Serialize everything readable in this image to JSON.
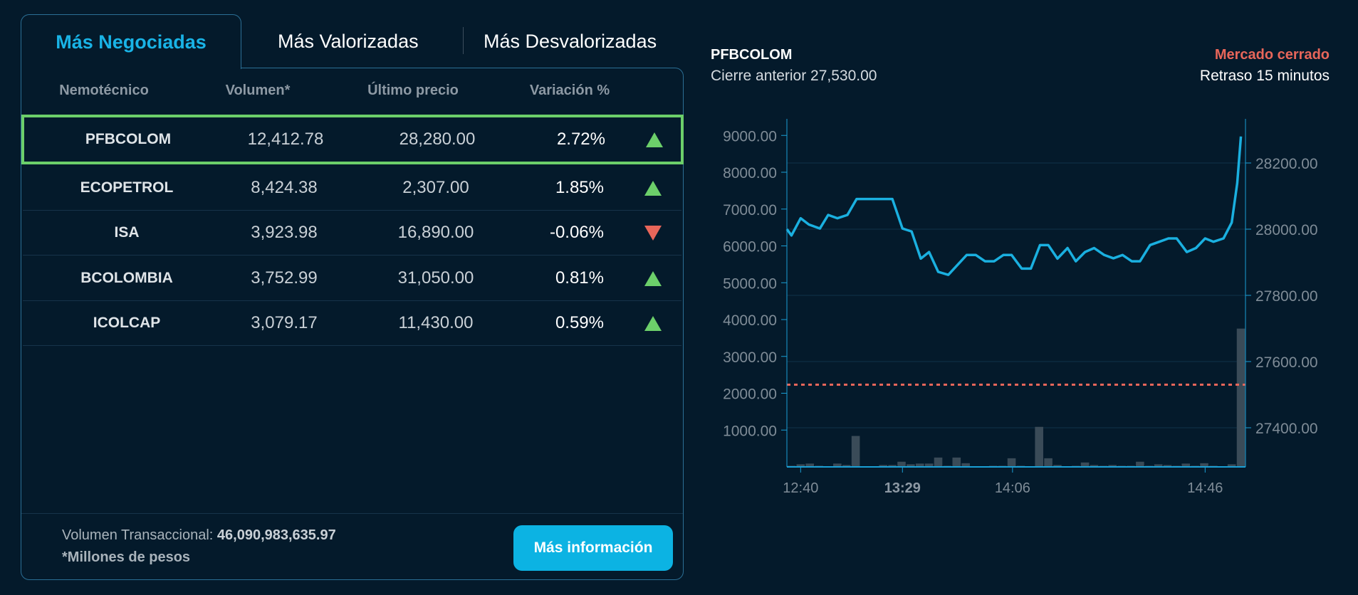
{
  "tabs": [
    {
      "label": "Más Negociadas",
      "active": true
    },
    {
      "label": "Más Valorizadas"
    },
    {
      "label": "Más Desvalorizadas"
    }
  ],
  "table": {
    "headers": [
      "Nemotécnico",
      "Volumen*",
      "Último precio",
      "Variación %"
    ],
    "rows": [
      {
        "symbol": "PFBCOLOM",
        "volume": "12,412.78",
        "price": "28,280.00",
        "change": "2.72%",
        "direction": "up",
        "selected": true
      },
      {
        "symbol": "ECOPETROL",
        "volume": "8,424.38",
        "price": "2,307.00",
        "change": "1.85%",
        "direction": "up"
      },
      {
        "symbol": "ISA",
        "volume": "3,923.98",
        "price": "16,890.00",
        "change": "-0.06%",
        "direction": "down"
      },
      {
        "symbol": "BCOLOMBIA",
        "volume": "3,752.99",
        "price": "31,050.00",
        "change": "0.81%",
        "direction": "up"
      },
      {
        "symbol": "ICOLCAP",
        "volume": "3,079.17",
        "price": "11,430.00",
        "change": "0.59%",
        "direction": "up"
      }
    ]
  },
  "footer": {
    "volume_label": "Volumen Transaccional: ",
    "volume_value": "46,090,983,635.97",
    "note": "*Millones de pesos",
    "button": "Más información"
  },
  "colors": {
    "accent": "#19b3e6",
    "up": "#6ccf6a",
    "down": "#e8665a",
    "line": "#1ab0e0",
    "bars": "#3a4b58",
    "reference": "#e8665a"
  },
  "chart_header": {
    "symbol": "PFBCOLOM",
    "prev_close": "Cierre anterior 27,530.00",
    "status": "Mercado cerrado",
    "delay": "Retraso 15 minutos"
  },
  "chart_data": {
    "type": "line",
    "x_ticks": [
      {
        "label": "12:40",
        "x": 1.5
      },
      {
        "label": "13:29",
        "x": 12.6,
        "bold": true
      },
      {
        "label": "14:06",
        "x": 24.6
      },
      {
        "label": "14:46",
        "x": 45.6
      }
    ],
    "xlim": [
      0,
      50
    ],
    "left_axis": {
      "ticks": [
        "1000.00",
        "2000.00",
        "3000.00",
        "4000.00",
        "5000.00",
        "6000.00",
        "7000.00",
        "8000.00",
        "9000.00"
      ],
      "values": [
        1000,
        2000,
        3000,
        4000,
        5000,
        6000,
        7000,
        8000,
        9000
      ]
    },
    "right_axis": {
      "ticks": [
        "27400.00",
        "27600.00",
        "27800.00",
        "28000.00",
        "28200.00"
      ],
      "values": [
        27400,
        27600,
        27800,
        28000,
        28200
      ]
    },
    "reference_line": 27530,
    "price": [
      [
        0,
        28000
      ],
      [
        0.5,
        27981
      ],
      [
        1.5,
        28033
      ],
      [
        2.4,
        28014
      ],
      [
        3.6,
        28002
      ],
      [
        4.5,
        28043
      ],
      [
        5.5,
        28033
      ],
      [
        6.6,
        28043
      ],
      [
        7.6,
        28091
      ],
      [
        11.5,
        28091
      ],
      [
        12.6,
        28002
      ],
      [
        13.6,
        27993
      ],
      [
        14.6,
        27911
      ],
      [
        15.5,
        27931
      ],
      [
        16.5,
        27871
      ],
      [
        17.6,
        27862
      ],
      [
        19.6,
        27922
      ],
      [
        20.6,
        27922
      ],
      [
        21.6,
        27903
      ],
      [
        22.6,
        27903
      ],
      [
        23.6,
        27922
      ],
      [
        24.5,
        27922
      ],
      [
        25.6,
        27881
      ],
      [
        26.6,
        27881
      ],
      [
        27.6,
        27952
      ],
      [
        28.5,
        27952
      ],
      [
        29.5,
        27911
      ],
      [
        30.6,
        27943
      ],
      [
        31.5,
        27903
      ],
      [
        32.5,
        27931
      ],
      [
        33.5,
        27943
      ],
      [
        34.6,
        27922
      ],
      [
        35.6,
        27912
      ],
      [
        36.6,
        27922
      ],
      [
        37.6,
        27903
      ],
      [
        38.5,
        27903
      ],
      [
        39.6,
        27952
      ],
      [
        40.6,
        27962
      ],
      [
        41.6,
        27972
      ],
      [
        42.5,
        27972
      ],
      [
        43.6,
        27931
      ],
      [
        44.6,
        27943
      ],
      [
        45.6,
        27972
      ],
      [
        46.5,
        27962
      ],
      [
        47.6,
        27972
      ],
      [
        48.5,
        28020
      ],
      [
        49.1,
        28139
      ],
      [
        49.5,
        28280
      ]
    ],
    "volume": [
      30,
      70,
      90,
      30,
      5,
      90,
      50,
      840,
      5,
      5,
      50,
      50,
      140,
      70,
      90,
      90,
      254,
      30,
      254,
      100,
      5,
      5,
      30,
      30,
      234,
      30,
      5,
      1087,
      234,
      50,
      5,
      30,
      120,
      50,
      30,
      50,
      30,
      30,
      140,
      30,
      70,
      50,
      30,
      90,
      30,
      100,
      30,
      5,
      70,
      3755
    ]
  }
}
